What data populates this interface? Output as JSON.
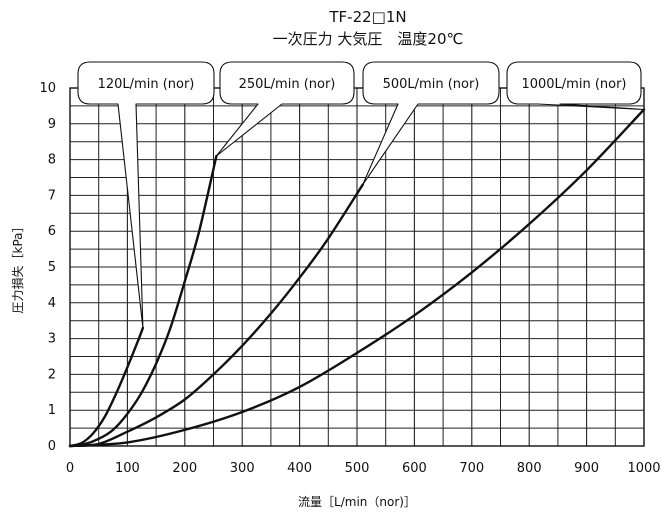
{
  "chart_data": {
    "type": "line",
    "title": "TF-22□1N",
    "subtitle": "一次圧力 大気圧　温度20℃",
    "xlabel": "流量［L/min（nor)］",
    "ylabel": "圧力損失［kPa］",
    "xlim": [
      0,
      1000
    ],
    "ylim": [
      0,
      10
    ],
    "x_ticks": [
      "0",
      "100",
      "200",
      "300",
      "400",
      "500",
      "600",
      "700",
      "800",
      "900",
      "1000"
    ],
    "y_ticks": [
      "0",
      "1",
      "2",
      "3",
      "4",
      "5",
      "6",
      "7",
      "8",
      "9",
      "10"
    ],
    "grid": true,
    "series": [
      {
        "name": "120L/min (nor)",
        "x": [
          0,
          20,
          40,
          60,
          80,
          100,
          120,
          127
        ],
        "y": [
          0,
          0.08,
          0.35,
          0.8,
          1.45,
          2.2,
          3.0,
          3.3
        ]
      },
      {
        "name": "250L/min (nor)",
        "x": [
          0,
          25,
          50,
          75,
          100,
          125,
          150,
          175,
          200,
          225,
          255
        ],
        "y": [
          0,
          0.05,
          0.2,
          0.45,
          0.9,
          1.5,
          2.3,
          3.3,
          4.6,
          6.0,
          8.1
        ]
      },
      {
        "name": "500L/min (nor)",
        "x": [
          0,
          50,
          100,
          150,
          200,
          250,
          300,
          350,
          400,
          450,
          510
        ],
        "y": [
          0,
          0.06,
          0.4,
          0.8,
          1.3,
          2.0,
          2.8,
          3.7,
          4.7,
          5.8,
          7.3
        ]
      },
      {
        "name": "1000L/min (nor)",
        "x": [
          0,
          100,
          200,
          300,
          400,
          500,
          600,
          700,
          800,
          900,
          1000
        ],
        "y": [
          0,
          0.1,
          0.45,
          0.95,
          1.65,
          2.6,
          3.65,
          4.85,
          6.2,
          7.7,
          9.4
        ]
      }
    ]
  }
}
